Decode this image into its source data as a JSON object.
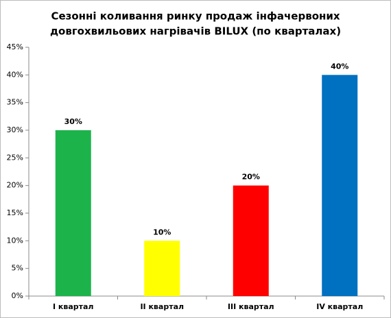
{
  "chart_data": {
    "type": "bar",
    "title": [
      "Сезонні коливання ринку продаж інфачервоних",
      "довгохвильових нагрівачів BILUX  (по кварталах)"
    ],
    "categories": [
      "I квартал",
      "II квартал",
      "III квартал",
      "IV квартал"
    ],
    "values": [
      30,
      10,
      20,
      40
    ],
    "value_labels": [
      "30%",
      "10%",
      "20%",
      "40%"
    ],
    "colors": [
      "#1db34b",
      "#ffff00",
      "#ff0000",
      "#0070c0"
    ],
    "ylim": [
      0,
      45
    ],
    "yticks": [
      {
        "value": 0,
        "label": "0%"
      },
      {
        "value": 5,
        "label": "5%"
      },
      {
        "value": 10,
        "label": "10%"
      },
      {
        "value": 15,
        "label": "15%"
      },
      {
        "value": 20,
        "label": "20%"
      },
      {
        "value": 25,
        "label": "25%"
      },
      {
        "value": 30,
        "label": "30%"
      },
      {
        "value": 35,
        "label": "35%"
      },
      {
        "value": 40,
        "label": "40%"
      },
      {
        "value": 45,
        "label": "45%"
      }
    ],
    "grid": false
  }
}
